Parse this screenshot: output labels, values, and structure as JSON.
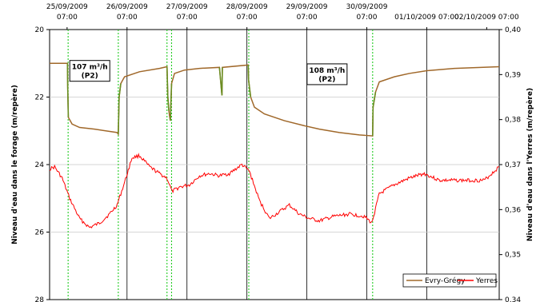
{
  "chart_data": {
    "type": "line",
    "title": "",
    "xaxis": {
      "type": "time",
      "range": [
        "2009-09-25 00:00",
        "2009-10-02 12:00"
      ],
      "tick_labels": [
        {
          "at": "2009-09-25 07:00",
          "date": "25/09/2009",
          "time": "07:00"
        },
        {
          "at": "2009-09-26 07:00",
          "date": "26/09/2009",
          "time": "07:00"
        },
        {
          "at": "2009-09-27 07:00",
          "date": "27/09/2009",
          "time": "07:00"
        },
        {
          "at": "2009-09-28 07:00",
          "date": "28/09/2009",
          "time": "07:00"
        },
        {
          "at": "2009-09-29 07:00",
          "date": "29/09/2009",
          "time": "07:00"
        },
        {
          "at": "2009-09-30 07:00",
          "date": "30/09/2009",
          "time": "07:00"
        },
        {
          "at": "2009-10-01 07:00",
          "date": "01/10/2009 07:00",
          "time": ""
        },
        {
          "at": "2009-10-02 07:00",
          "date": "02/10/2009 07:00",
          "time": ""
        }
      ],
      "major_gridlines": [
        "2009-09-26 07:00",
        "2009-09-27 07:00",
        "2009-09-28 07:00",
        "2009-09-29 07:00",
        "2009-09-30 07:00",
        "2009-10-01 07:00"
      ]
    },
    "y_left": {
      "label": "Niveau d'eau dans le forage (m/repère)",
      "range": [
        20,
        28
      ],
      "inverted": true,
      "ticks": [
        "20",
        "22",
        "24",
        "26",
        "28"
      ]
    },
    "y_right": {
      "label": "Niveau d'eau dans l'Yerres (m/repère)",
      "range": [
        0.34,
        0.4
      ],
      "ticks": [
        "0,34",
        "0,35",
        "0,36",
        "0,37",
        "0,38",
        "0,39",
        "0,40"
      ]
    },
    "pump_event_lines": [
      "2009-09-25 07:25",
      "2009-09-26 03:30",
      "2009-09-26 23:00",
      "2009-09-27 00:50",
      "2009-09-28 07:45",
      "2009-09-30 09:20"
    ],
    "annotations": [
      {
        "line1": "107 m³/h",
        "line2": "(P2)",
        "at_x": "2009-09-25 10:00",
        "at_y": 21.2
      },
      {
        "line1": "108 m³/h",
        "line2": "(P2)",
        "at_x": "2009-09-29 09:00",
        "at_y": 21.3
      }
    ],
    "series": [
      {
        "name": "Evry-Grégy",
        "axis": "left",
        "color": "#a0682a",
        "recovery_color": "#6b8e23",
        "points": [
          [
            "2009-09-25 00:00",
            21.0
          ],
          [
            "2009-09-25 07:10",
            21.0
          ],
          [
            "2009-09-25 07:15",
            21.7
          ],
          [
            "2009-09-25 07:30",
            22.6
          ],
          [
            "2009-09-25 09:00",
            22.8
          ],
          [
            "2009-09-25 12:00",
            22.9
          ],
          [
            "2009-09-25 18:00",
            22.95
          ],
          [
            "2009-09-26 03:00",
            23.05
          ],
          [
            "2009-09-26 03:30",
            23.1
          ],
          [
            "2009-09-26 03:50",
            22.0
          ],
          [
            "2009-09-26 04:30",
            21.6
          ],
          [
            "2009-09-26 06:00",
            21.4
          ],
          [
            "2009-09-26 12:00",
            21.25
          ],
          [
            "2009-09-26 20:00",
            21.15
          ],
          [
            "2009-09-26 23:00",
            21.1
          ],
          [
            "2009-09-26 23:20",
            22.0
          ],
          [
            "2009-09-26 23:45",
            22.4
          ],
          [
            "2009-09-27 00:00",
            22.55
          ],
          [
            "2009-09-27 00:20",
            22.7
          ],
          [
            "2009-09-27 00:50",
            21.6
          ],
          [
            "2009-09-27 02:00",
            21.3
          ],
          [
            "2009-09-27 06:00",
            21.2
          ],
          [
            "2009-09-27 12:00",
            21.15
          ],
          [
            "2009-09-27 20:00",
            21.12
          ],
          [
            "2009-09-27 21:00",
            21.95
          ],
          [
            "2009-09-27 21:10",
            21.12
          ],
          [
            "2009-09-28 07:30",
            21.05
          ],
          [
            "2009-09-28 07:40",
            21.5
          ],
          [
            "2009-09-28 08:30",
            22.0
          ],
          [
            "2009-09-28 10:00",
            22.3
          ],
          [
            "2009-09-28 14:00",
            22.5
          ],
          [
            "2009-09-28 22:00",
            22.7
          ],
          [
            "2009-09-29 06:00",
            22.85
          ],
          [
            "2009-09-29 12:00",
            22.95
          ],
          [
            "2009-09-29 20:00",
            23.05
          ],
          [
            "2009-09-30 04:00",
            23.12
          ],
          [
            "2009-09-30 09:20",
            23.15
          ],
          [
            "2009-09-30 09:30",
            22.3
          ],
          [
            "2009-09-30 10:30",
            21.85
          ],
          [
            "2009-09-30 12:00",
            21.55
          ],
          [
            "2009-09-30 18:00",
            21.4
          ],
          [
            "2009-10-01 00:00",
            21.3
          ],
          [
            "2009-10-01 07:00",
            21.22
          ],
          [
            "2009-10-01 18:00",
            21.15
          ],
          [
            "2009-10-02 12:00",
            21.1
          ]
        ]
      },
      {
        "name": "Yerres",
        "axis": "right",
        "color": "#ff0000",
        "points": [
          [
            "2009-09-25 00:00",
            0.369
          ],
          [
            "2009-09-25 02:00",
            0.3695
          ],
          [
            "2009-09-25 05:00",
            0.367
          ],
          [
            "2009-09-25 08:00",
            0.3625
          ],
          [
            "2009-09-25 12:00",
            0.358
          ],
          [
            "2009-09-25 16:00",
            0.356
          ],
          [
            "2009-09-25 20:00",
            0.357
          ],
          [
            "2009-09-26 00:00",
            0.359
          ],
          [
            "2009-09-26 03:00",
            0.361
          ],
          [
            "2009-09-26 06:00",
            0.366
          ],
          [
            "2009-09-26 09:00",
            0.3715
          ],
          [
            "2009-09-26 12:00",
            0.372
          ],
          [
            "2009-09-26 16:00",
            0.3695
          ],
          [
            "2009-09-26 20:00",
            0.368
          ],
          [
            "2009-09-26 23:00",
            0.367
          ],
          [
            "2009-09-27 01:00",
            0.364
          ],
          [
            "2009-09-27 04:00",
            0.365
          ],
          [
            "2009-09-27 08:00",
            0.3655
          ],
          [
            "2009-09-27 12:00",
            0.3675
          ],
          [
            "2009-09-27 16:00",
            0.368
          ],
          [
            "2009-09-27 20:00",
            0.3675
          ],
          [
            "2009-09-28 00:00",
            0.368
          ],
          [
            "2009-09-28 05:00",
            0.37
          ],
          [
            "2009-09-28 08:00",
            0.3685
          ],
          [
            "2009-09-28 12:00",
            0.362
          ],
          [
            "2009-09-28 16:00",
            0.358
          ],
          [
            "2009-09-28 20:00",
            0.3595
          ],
          [
            "2009-09-29 00:00",
            0.361
          ],
          [
            "2009-09-29 04:00",
            0.359
          ],
          [
            "2009-09-29 08:00",
            0.358
          ],
          [
            "2009-09-29 12:00",
            0.3575
          ],
          [
            "2009-09-29 18:00",
            0.3585
          ],
          [
            "2009-09-30 00:00",
            0.359
          ],
          [
            "2009-09-30 06:00",
            0.3585
          ],
          [
            "2009-09-30 09:00",
            0.357
          ],
          [
            "2009-09-30 12:00",
            0.3635
          ],
          [
            "2009-09-30 18:00",
            0.3655
          ],
          [
            "2009-10-01 00:00",
            0.367
          ],
          [
            "2009-10-01 06:00",
            0.368
          ],
          [
            "2009-10-01 12:00",
            0.3665
          ],
          [
            "2009-10-01 18:00",
            0.3665
          ],
          [
            "2009-10-02 06:00",
            0.3665
          ],
          [
            "2009-10-02 12:00",
            0.3695
          ]
        ]
      }
    ],
    "legend": {
      "placement": "bottom-right",
      "entries": [
        {
          "name": "Evry-Grégy",
          "color": "#a0682a"
        },
        {
          "name": "Yerres",
          "color": "#ff0000"
        }
      ]
    }
  }
}
